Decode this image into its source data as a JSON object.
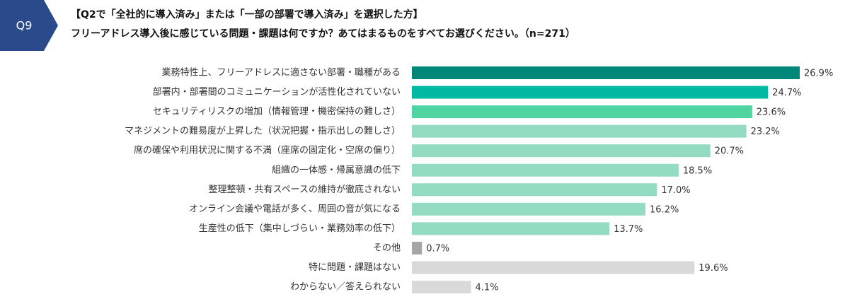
{
  "chart_data": {
    "type": "bar",
    "orientation": "horizontal",
    "question_number": "Q9",
    "title": "【Q2で「全社的に導入済み」または「一部の部署で導入済み」を選択した方】",
    "subtitle": "フリーアドレス導入後に感じている問題・課題は何ですか？あてはまるものをすべてお選びください。（n=271）",
    "categories": [
      "業務特性上、フリーアドレスに適さない部署・職種がある",
      "部署内・部署間のコミュニケーションが活性化されていない",
      "セキュリティリスクの増加（情報管理・機密保持の難しさ）",
      "マネジメントの難易度が上昇した（状況把握・指示出しの難しさ）",
      "席の確保や利用状況に関する不満（座席の固定化・空席の偏り）",
      "組織の一体感・帰属意識の低下",
      "整理整頓・共有スペースの維持が徹底されない",
      "オンライン会議や電話が多く、周囲の音が気になる",
      "生産性の低下（集中しづらい・業務効率の低下）",
      "その他",
      "特に問題・課題はない",
      "わからない／答えられない"
    ],
    "values": [
      26.9,
      24.7,
      23.6,
      23.2,
      20.7,
      18.5,
      17.0,
      16.2,
      13.7,
      0.7,
      19.6,
      4.1
    ],
    "value_labels": [
      "26.9%",
      "24.7%",
      "23.6%",
      "23.2%",
      "20.7%",
      "18.5%",
      "17.0%",
      "16.2%",
      "13.7%",
      "0.7%",
      "19.6%",
      "4.1%"
    ],
    "colors": [
      "#00877a",
      "#00b9a2",
      "#4fd4a2",
      "#93dbc1",
      "#93dbc1",
      "#93dbc1",
      "#93dbc1",
      "#93dbc1",
      "#93dbc1",
      "#a6a6a6",
      "#d9d9d9",
      "#d9d9d9"
    ]
  }
}
